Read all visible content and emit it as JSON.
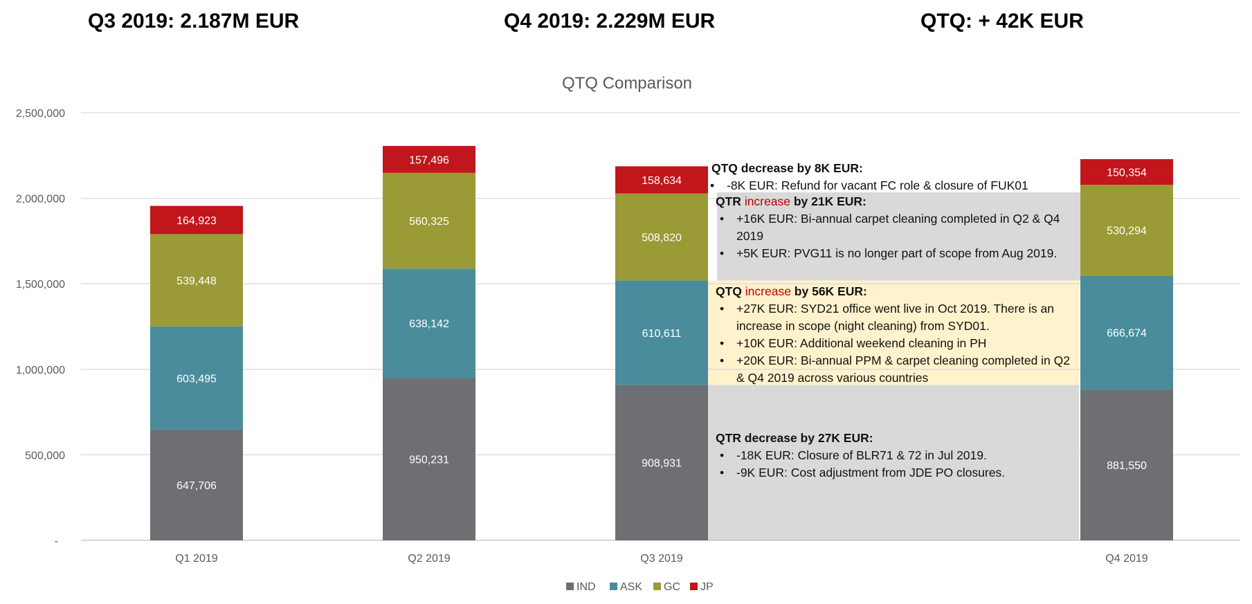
{
  "header": {
    "q3": "Q3 2019: 2.187M EUR",
    "q4": "Q4 2019: 2.229M EUR",
    "qtq": "QTQ: + 42K EUR"
  },
  "chart_data": {
    "type": "bar",
    "stacked": true,
    "title": "QTQ Comparison",
    "categories": [
      "Q1 2019",
      "Q2 2019",
      "Q3 2019",
      "Q4 2019"
    ],
    "series": [
      {
        "name": "IND",
        "values": [
          647706,
          950231,
          908931,
          881550
        ],
        "color": "#6d6f72"
      },
      {
        "name": "ASK",
        "values": [
          603495,
          638142,
          610611,
          666674
        ],
        "color": "#4a8c9c"
      },
      {
        "name": "GC",
        "values": [
          539448,
          560325,
          508820,
          530294
        ],
        "color": "#9a9a36"
      },
      {
        "name": "JP",
        "values": [
          164923,
          157496,
          158634,
          150354
        ],
        "color": "#c0161c"
      }
    ],
    "data_labels": [
      [
        "647,706",
        "950,231",
        "908,931",
        "881,550"
      ],
      [
        "603,495",
        "638,142",
        "610,611",
        "666,674"
      ],
      [
        "539,448",
        "560,325",
        "508,820",
        "530,294"
      ],
      [
        "164,923",
        "157,496",
        "158,634",
        "150,354"
      ]
    ],
    "ylim": [
      0,
      2500000
    ],
    "yticks": [
      0,
      500000,
      1000000,
      1500000,
      2000000,
      2500000
    ],
    "ytick_labels": [
      "-",
      "500,000",
      "1,000,000",
      "1,500,000",
      "2,000,000",
      "2,500,000"
    ],
    "grid": true,
    "legend_position": "bottom"
  },
  "annotations": {
    "jp": {
      "head": "QTQ decrease by 8K EUR",
      "items": [
        "-8K EUR: Refund for vacant FC role & closure of FUK01"
      ]
    },
    "gc": {
      "head_pre": "QTR ",
      "head_em": "increase",
      "head_post": " by 21K EUR",
      "items": [
        "+16K EUR: Bi-annual carpet cleaning completed in Q2 & Q4 2019",
        "+5K EUR: PVG11 is no longer part of scope from Aug 2019."
      ]
    },
    "ask": {
      "head_pre": "QTQ ",
      "head_em": "increase",
      "head_post": " by 56K EUR",
      "items": [
        "+27K EUR: SYD21 office went live in Oct 2019. There is an increase in scope (night cleaning) from SYD01.",
        "+10K EUR: Additional weekend cleaning in PH",
        "+20K EUR: Bi-annual PPM & carpet cleaning completed in Q2 & Q4 2019 across various countries"
      ]
    },
    "ind": {
      "head": "QTR decrease by 27K EUR",
      "items": [
        "-18K EUR: Closure of BLR71 & 72 in Jul 2019.",
        "-9K EUR: Cost adjustment from JDE PO closures."
      ]
    },
    "colors": {
      "grey_box": "#d9d9d9",
      "yellow_box": "#fff2cc",
      "emphasis": "#c00000"
    }
  }
}
